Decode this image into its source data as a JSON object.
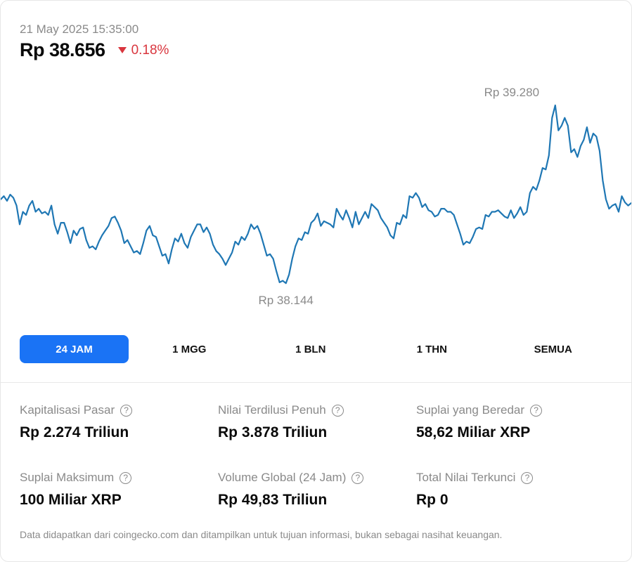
{
  "header": {
    "timestamp": "21 May 2025 15:35:00",
    "price": "Rp 38.656",
    "change": "0.18%",
    "change_direction": "down",
    "change_color": "#d9363e"
  },
  "chart_data": {
    "type": "line",
    "title": "",
    "xlabel": "",
    "ylabel": "",
    "line_color": "#1f77b4",
    "high_label": "Rp 39.280",
    "low_label": "Rp 38.144",
    "high": 39280,
    "low": 38144,
    "ylim": [
      38100,
      39320
    ],
    "grid": false,
    "values": [
      38680,
      38700,
      38670,
      38710,
      38690,
      38640,
      38520,
      38600,
      38580,
      38640,
      38670,
      38600,
      38620,
      38590,
      38600,
      38580,
      38640,
      38520,
      38460,
      38530,
      38530,
      38470,
      38400,
      38480,
      38450,
      38490,
      38500,
      38420,
      38370,
      38380,
      38360,
      38410,
      38450,
      38480,
      38510,
      38560,
      38570,
      38530,
      38480,
      38400,
      38420,
      38380,
      38340,
      38350,
      38330,
      38400,
      38480,
      38510,
      38450,
      38440,
      38380,
      38320,
      38330,
      38270,
      38360,
      38430,
      38410,
      38460,
      38400,
      38370,
      38440,
      38480,
      38520,
      38520,
      38470,
      38500,
      38460,
      38390,
      38350,
      38330,
      38300,
      38260,
      38300,
      38340,
      38410,
      38390,
      38440,
      38420,
      38460,
      38520,
      38490,
      38510,
      38460,
      38390,
      38320,
      38330,
      38300,
      38220,
      38150,
      38160,
      38144,
      38200,
      38300,
      38380,
      38430,
      38420,
      38470,
      38460,
      38530,
      38550,
      38590,
      38510,
      38540,
      38530,
      38520,
      38500,
      38620,
      38580,
      38550,
      38610,
      38560,
      38500,
      38600,
      38520,
      38560,
      38600,
      38560,
      38650,
      38630,
      38610,
      38560,
      38530,
      38500,
      38450,
      38430,
      38530,
      38520,
      38580,
      38560,
      38700,
      38690,
      38720,
      38690,
      38630,
      38650,
      38610,
      38600,
      38570,
      38580,
      38620,
      38620,
      38600,
      38600,
      38580,
      38520,
      38460,
      38390,
      38410,
      38400,
      38440,
      38490,
      38500,
      38490,
      38580,
      38570,
      38600,
      38600,
      38610,
      38590,
      38570,
      38560,
      38610,
      38560,
      38590,
      38630,
      38580,
      38600,
      38720,
      38760,
      38740,
      38800,
      38880,
      38870,
      38960,
      39200,
      39280,
      39120,
      39150,
      39200,
      39150,
      38980,
      39000,
      38950,
      39020,
      39060,
      39140,
      39040,
      39100,
      39080,
      38990,
      38800,
      38680,
      38620,
      38640,
      38650,
      38600,
      38700,
      38660,
      38640,
      38656
    ]
  },
  "range_tabs": [
    {
      "label": "24 JAM",
      "active": true
    },
    {
      "label": "1 MGG",
      "active": false
    },
    {
      "label": "1 BLN",
      "active": false
    },
    {
      "label": "1 THN",
      "active": false
    },
    {
      "label": "SEMUA",
      "active": false
    }
  ],
  "stats": [
    {
      "label": "Kapitalisasi Pasar",
      "value": "Rp 2.274 Triliun"
    },
    {
      "label": "Nilai Terdilusi Penuh",
      "value": "Rp 3.878 Triliun"
    },
    {
      "label": "Suplai yang Beredar",
      "value": "58,62 Miliar XRP"
    },
    {
      "label": "Suplai Maksimum",
      "value": "100 Miliar XRP"
    },
    {
      "label": "Volume Global (24 Jam)",
      "value": "Rp 49,83 Triliun"
    },
    {
      "label": "Total Nilai Terkunci",
      "value": "Rp 0"
    }
  ],
  "help_icon_glyph": "?",
  "footer": "Data didapatkan dari coingecko.com dan ditampilkan untuk tujuan informasi, bukan sebagai nasihat keuangan."
}
